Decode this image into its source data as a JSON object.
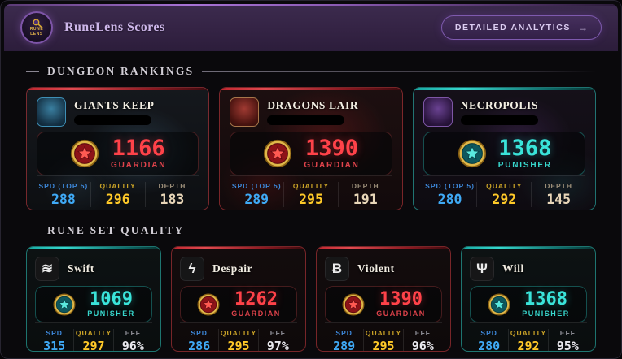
{
  "header": {
    "title": "RuneLens Scores",
    "logo": {
      "line1": "RUNE",
      "line2": "LENS"
    },
    "analytics_button": "DETAILED ANALYTICS",
    "analytics_arrow": "→"
  },
  "sections": {
    "dungeon_rankings": "DUNGEON RANKINGS",
    "rune_set_quality": "RUNE SET QUALITY"
  },
  "colors": {
    "red_accent": "#e23c44",
    "teal_accent": "#2fd6cc",
    "spd_blue": "#3fa9f5",
    "quality_yellow": "#ffc928",
    "depth_tan": "#e8d6b8",
    "header_purple": "#8a5ab2"
  },
  "dungeons": [
    {
      "name": "GIANTS KEEP",
      "icon": "giants",
      "accent": "red",
      "badge": "guardian",
      "score": "1166",
      "rank": "GUARDIAN",
      "stats": [
        {
          "type": "spd",
          "label": "SPD (TOP 5)",
          "value": "288"
        },
        {
          "type": "quality",
          "label": "QUALITY",
          "value": "296"
        },
        {
          "type": "depth",
          "label": "DEPTH",
          "value": "183"
        }
      ]
    },
    {
      "name": "DRAGONS LAIR",
      "icon": "dragons",
      "accent": "red",
      "badge": "guardian",
      "score": "1390",
      "rank": "GUARDIAN",
      "stats": [
        {
          "type": "spd",
          "label": "SPD (TOP 5)",
          "value": "289"
        },
        {
          "type": "quality",
          "label": "QUALITY",
          "value": "295"
        },
        {
          "type": "depth",
          "label": "DEPTH",
          "value": "191"
        }
      ]
    },
    {
      "name": "NECROPOLIS",
      "icon": "necro",
      "accent": "teal",
      "badge": "punisher",
      "score": "1368",
      "rank": "PUNISHER",
      "stats": [
        {
          "type": "spd",
          "label": "SPD (TOP 5)",
          "value": "280"
        },
        {
          "type": "quality",
          "label": "QUALITY",
          "value": "292"
        },
        {
          "type": "depth",
          "label": "DEPTH",
          "value": "145"
        }
      ]
    }
  ],
  "rune_sets": [
    {
      "name": "Swift",
      "glyph": "≋",
      "accent": "teal",
      "badge": "punisher",
      "score": "1069",
      "rank": "PUNISHER",
      "stats": [
        {
          "type": "spd",
          "label": "SPD",
          "value": "315"
        },
        {
          "type": "quality",
          "label": "QUALITY",
          "value": "297"
        },
        {
          "type": "eff",
          "label": "EFF",
          "value": "96%"
        }
      ]
    },
    {
      "name": "Despair",
      "glyph": "ϟ",
      "accent": "red",
      "badge": "guardian",
      "score": "1262",
      "rank": "GUARDIAN",
      "stats": [
        {
          "type": "spd",
          "label": "SPD",
          "value": "286"
        },
        {
          "type": "quality",
          "label": "QUALITY",
          "value": "295"
        },
        {
          "type": "eff",
          "label": "EFF",
          "value": "97%"
        }
      ]
    },
    {
      "name": "Violent",
      "glyph": "Ƀ",
      "accent": "red",
      "badge": "guardian",
      "score": "1390",
      "rank": "GUARDIAN",
      "stats": [
        {
          "type": "spd",
          "label": "SPD",
          "value": "289"
        },
        {
          "type": "quality",
          "label": "QUALITY",
          "value": "295"
        },
        {
          "type": "eff",
          "label": "EFF",
          "value": "96%"
        }
      ]
    },
    {
      "name": "Will",
      "glyph": "Ψ",
      "accent": "teal",
      "badge": "punisher",
      "score": "1368",
      "rank": "PUNISHER",
      "stats": [
        {
          "type": "spd",
          "label": "SPD",
          "value": "280"
        },
        {
          "type": "quality",
          "label": "QUALITY",
          "value": "292"
        },
        {
          "type": "eff",
          "label": "EFF",
          "value": "95%"
        }
      ]
    }
  ]
}
